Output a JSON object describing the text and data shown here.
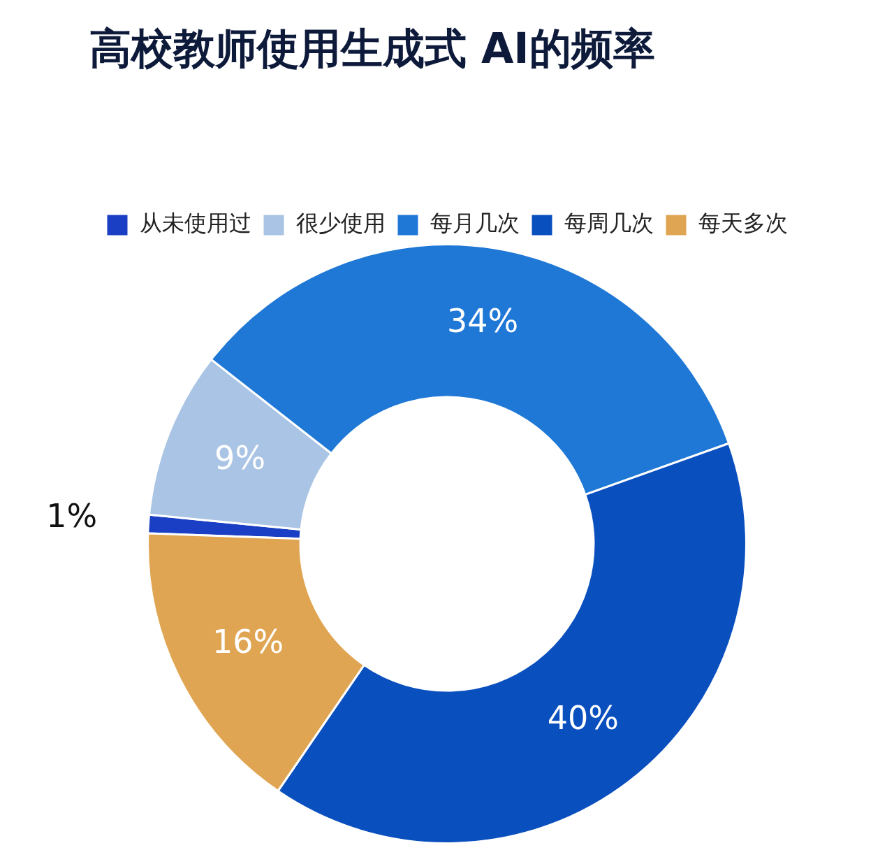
{
  "chart_data": {
    "type": "donut",
    "title": "高校教师使用生成式 AI的频率",
    "categories": [
      "从未使用过",
      "很少使用",
      "每月几次",
      "每周几次",
      "每天多次"
    ],
    "values": [
      1,
      9,
      34,
      40,
      16
    ],
    "colors": [
      "#1a3fc4",
      "#a9c4e4",
      "#1f78d6",
      "#0a4fbe",
      "#e0a552"
    ],
    "value_labels": [
      "1%",
      "9%",
      "34%",
      "40%",
      "16%"
    ],
    "legend": "top"
  }
}
